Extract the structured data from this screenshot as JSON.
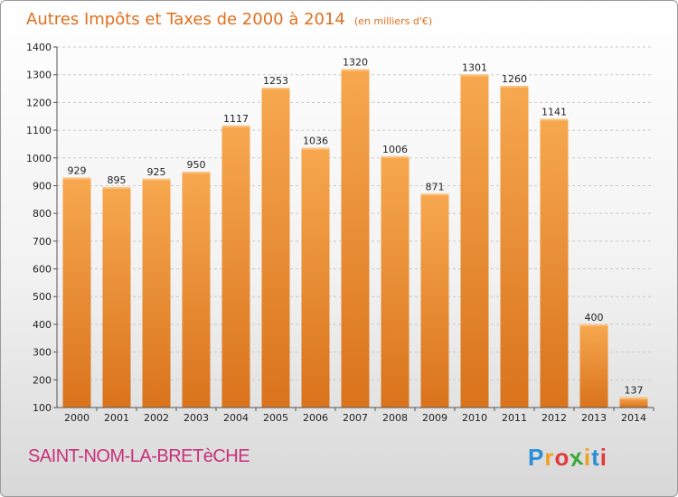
{
  "chart_data": {
    "type": "bar",
    "title": "Autres Impôts et Taxes de 2000 à 2014",
    "subtitle": "(en milliers d'€)",
    "categories": [
      "2000",
      "2001",
      "2002",
      "2003",
      "2004",
      "2005",
      "2006",
      "2007",
      "2008",
      "2009",
      "2010",
      "2011",
      "2012",
      "2013",
      "2014"
    ],
    "values": [
      929,
      895,
      925,
      950,
      1117,
      1253,
      1036,
      1320,
      1006,
      871,
      1301,
      1260,
      1141,
      400,
      137
    ],
    "ylim": [
      100,
      1400
    ],
    "yticks": [
      100,
      200,
      300,
      400,
      500,
      600,
      700,
      800,
      900,
      1000,
      1100,
      1200,
      1300,
      1400
    ],
    "grid": true,
    "bar_color": "#f0993a"
  },
  "footer": {
    "location": "SAINT-NOM-LA-BRETèCHE",
    "brand_letters": [
      "P",
      "r",
      "o",
      "x",
      "i",
      "t",
      "i"
    ],
    "brand_colors": [
      "#2a8fd6",
      "#f0a020",
      "#e23a3a",
      "#3aa83a",
      "#f0a020",
      "#2a8fd6",
      "#e23a3a"
    ]
  }
}
